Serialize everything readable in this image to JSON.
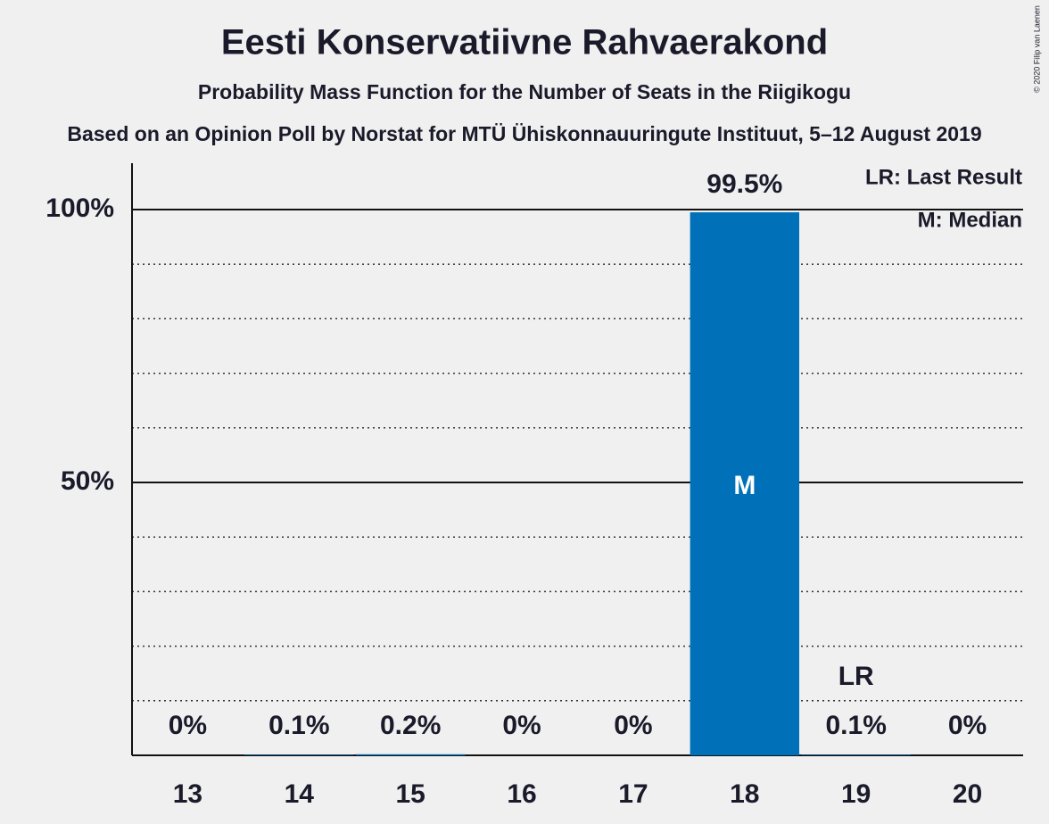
{
  "chart_data": {
    "type": "bar",
    "title": "Eesti Konservatiivne Rahvaerakond",
    "subtitle": "Probability Mass Function for the Number of Seats in the Riigikogu",
    "source": "Based on an Opinion Poll by Norstat for MTÜ Ühiskonnauuringute Instituut, 5–12 August 2019",
    "copyright": "© 2020 Filip van Laenen",
    "categories": [
      "13",
      "14",
      "15",
      "16",
      "17",
      "18",
      "19",
      "20"
    ],
    "values": [
      0,
      0.1,
      0.2,
      0,
      0,
      99.5,
      0.1,
      0
    ],
    "value_labels": [
      "0%",
      "0.1%",
      "0.2%",
      "0%",
      "0%",
      "99.5%",
      "0.1%",
      "0%"
    ],
    "color": "#0070b8",
    "ylim": [
      0,
      108.5
    ],
    "yticks": [
      {
        "value": 50,
        "label": "50%"
      },
      {
        "value": 100,
        "label": "100%"
      }
    ],
    "minor_yticks": [
      10,
      20,
      30,
      40,
      60,
      70,
      80,
      90
    ],
    "grid": true,
    "median": {
      "category": "18",
      "label": "M"
    },
    "last_result": {
      "category": "19",
      "label": "LR"
    },
    "legend": [
      "LR: Last Result",
      "M: Median"
    ]
  }
}
